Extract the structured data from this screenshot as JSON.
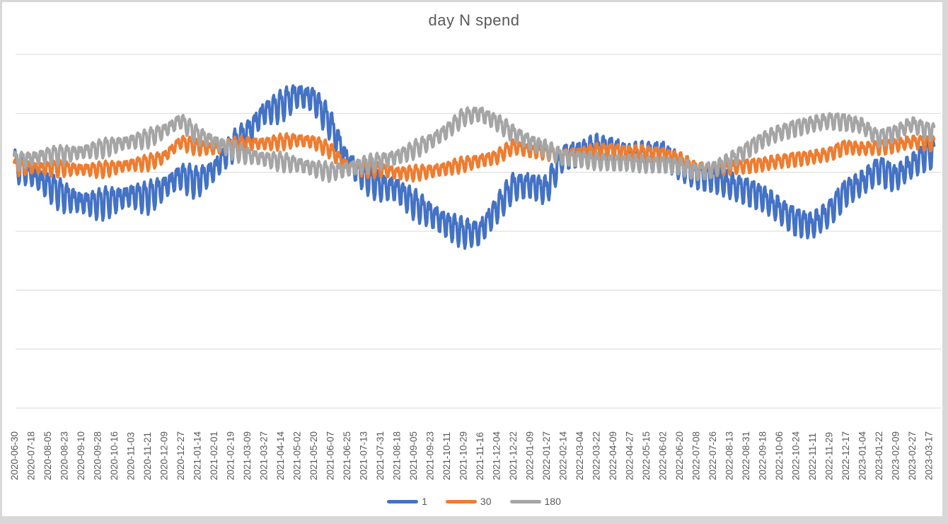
{
  "title": "day N spend",
  "colors": {
    "series_1": "#4472C4",
    "series_30": "#ED7D31",
    "series_180": "#A5A5A5",
    "text": "#595959",
    "gridline": "#D9D9D9",
    "canvas_border": "#D8D8D8",
    "background": "#FFFFFF"
  },
  "legend": {
    "items": [
      {
        "label": "1",
        "color": "#4472C4"
      },
      {
        "label": "30",
        "color": "#ED7D31"
      },
      {
        "label": "180",
        "color": "#A5A5A5"
      }
    ]
  },
  "chart_data": {
    "type": "line",
    "title": "day N spend",
    "xlabel": "",
    "ylabel": "",
    "x_tick_interval_days": 18,
    "categories": [
      "2020-06-30",
      "2020-07-18",
      "2020-08-05",
      "2020-08-23",
      "2020-09-10",
      "2020-09-28",
      "2020-10-16",
      "2020-11-03",
      "2020-11-21",
      "2020-12-09",
      "2020-12-27",
      "2021-01-14",
      "2021-02-01",
      "2021-02-19",
      "2021-03-09",
      "2021-03-27",
      "2021-04-14",
      "2021-05-02",
      "2021-05-20",
      "2021-06-07",
      "2021-06-25",
      "2021-07-13",
      "2021-07-31",
      "2021-08-18",
      "2021-09-05",
      "2021-09-23",
      "2021-10-11",
      "2021-10-29",
      "2021-11-16",
      "2021-12-04",
      "2021-12-22",
      "2022-01-09",
      "2022-01-27",
      "2022-02-14",
      "2022-03-04",
      "2022-03-22",
      "2022-04-09",
      "2022-04-27",
      "2022-05-15",
      "2022-06-02",
      "2022-06-20",
      "2022-07-08",
      "2022-07-26",
      "2022-08-13",
      "2022-08-31",
      "2022-09-18",
      "2022-10-06",
      "2022-10-24",
      "2022-11-11",
      "2022-11-29",
      "2022-12-17",
      "2023-01-04",
      "2023-01-22",
      "2023-02-09",
      "2023-02-27",
      "2023-03-17"
    ],
    "y_axis": {
      "tick_labels_visible": false,
      "gridline_count": 7,
      "units_note": "y axis is unlabeled; values estimated in gridline units (0 = bottom gridline, 6 = top gridline)"
    },
    "series": [
      {
        "name": "1",
        "color": "#4472C4",
        "weekly_amplitude": 0.22,
        "baseline_values": [
          4.12,
          3.95,
          3.76,
          3.58,
          3.47,
          3.45,
          3.51,
          3.59,
          3.56,
          3.72,
          3.92,
          3.82,
          4.01,
          4.39,
          4.63,
          4.99,
          5.11,
          5.29,
          5.23,
          4.81,
          4.18,
          3.92,
          3.74,
          3.7,
          3.46,
          3.28,
          3.1,
          2.96,
          2.96,
          3.35,
          3.74,
          3.77,
          3.68,
          4.25,
          4.3,
          4.39,
          4.37,
          4.25,
          4.28,
          4.3,
          4.1,
          3.94,
          3.89,
          3.77,
          3.68,
          3.56,
          3.35,
          3.16,
          3.08,
          3.29,
          3.65,
          3.8,
          4.04,
          3.89,
          4.1,
          4.31
        ]
      },
      {
        "name": "30",
        "color": "#ED7D31",
        "weekly_amplitude": 0.11,
        "baseline_values": [
          4.08,
          4.07,
          4.06,
          4.06,
          4.04,
          4.04,
          4.07,
          4.12,
          4.16,
          4.25,
          4.51,
          4.42,
          4.39,
          4.45,
          4.48,
          4.48,
          4.51,
          4.54,
          4.51,
          4.37,
          4.1,
          4.04,
          4.04,
          3.98,
          3.98,
          4.01,
          4.06,
          4.13,
          4.19,
          4.25,
          4.43,
          4.36,
          4.33,
          4.28,
          4.3,
          4.36,
          4.37,
          4.33,
          4.33,
          4.3,
          4.22,
          4.06,
          4.04,
          4.07,
          4.1,
          4.13,
          4.18,
          4.22,
          4.25,
          4.3,
          4.43,
          4.39,
          4.42,
          4.45,
          4.51,
          4.49
        ]
      },
      {
        "name": "180",
        "color": "#A5A5A5",
        "weekly_amplitude": 0.13,
        "baseline_values": [
          4.18,
          4.22,
          4.28,
          4.3,
          4.33,
          4.39,
          4.45,
          4.51,
          4.57,
          4.69,
          4.87,
          4.63,
          4.51,
          4.39,
          4.28,
          4.22,
          4.18,
          4.13,
          4.06,
          4.0,
          4.04,
          4.12,
          4.18,
          4.25,
          4.37,
          4.51,
          4.69,
          4.93,
          4.99,
          4.85,
          4.66,
          4.51,
          4.39,
          4.25,
          4.22,
          4.18,
          4.16,
          4.16,
          4.13,
          4.13,
          4.1,
          4.0,
          4.04,
          4.18,
          4.36,
          4.54,
          4.66,
          4.75,
          4.81,
          4.87,
          4.85,
          4.78,
          4.57,
          4.66,
          4.81,
          4.69
        ]
      }
    ],
    "weekly_pattern": [
      0.8,
      1.0,
      0.45,
      0.75,
      -0.35,
      -1.0,
      -0.75
    ],
    "legend_position": "bottom",
    "grid": true
  }
}
